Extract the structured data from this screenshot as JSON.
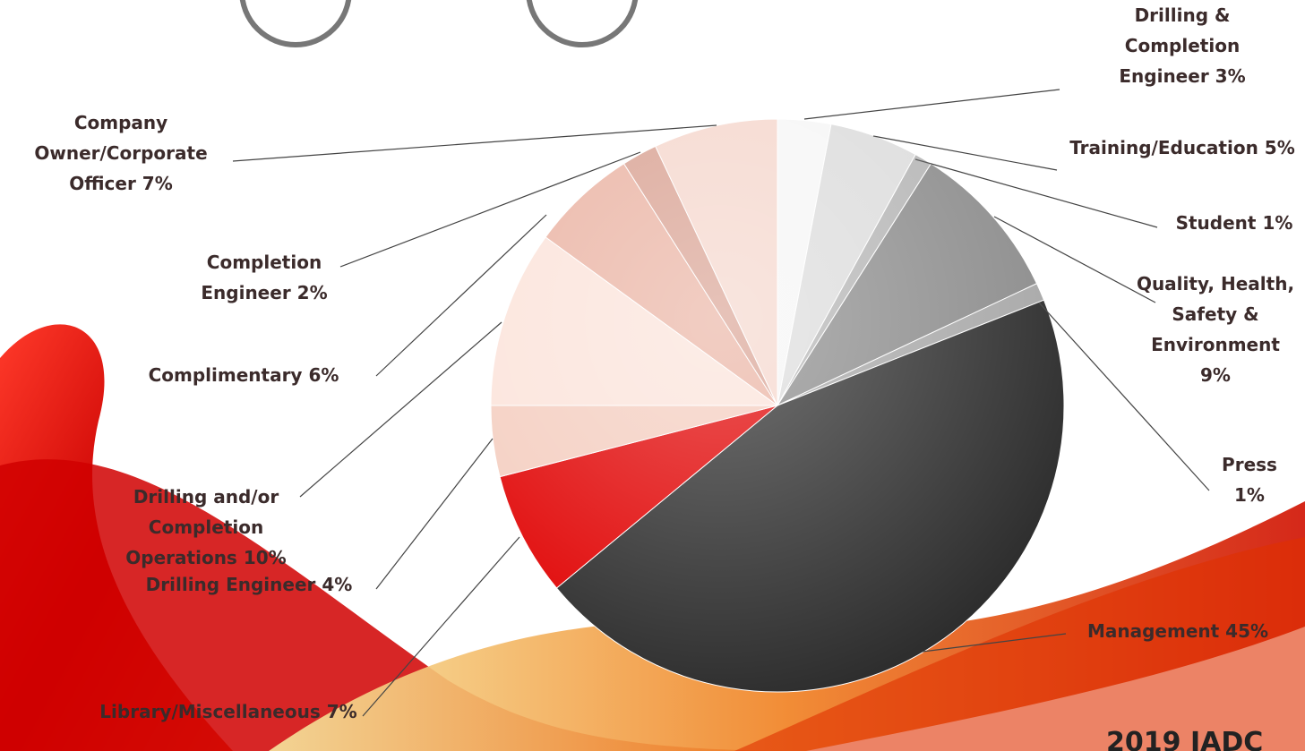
{
  "chart_data": {
    "type": "pie",
    "categories": [
      "Drilling & Completion Engineer",
      "Training/Education",
      "Student",
      "Quality, Health, Safety & Environment",
      "Press",
      "Management",
      "Library/Miscellaneous",
      "Drilling Engineer",
      "Drilling and/or Completion Operations",
      "Complimentary",
      "Completion Engineer",
      "Company Owner/Corporate Officer"
    ],
    "values": [
      3,
      5,
      1,
      9,
      1,
      45,
      7,
      4,
      10,
      6,
      2,
      7
    ],
    "value_labels": [
      "3%",
      "5%",
      "1%",
      "9%",
      "1%",
      "45%",
      "7%",
      "4%",
      "10%",
      "6%",
      "2%",
      "7%"
    ],
    "colors": [
      "#f6f6f6",
      "#dcdcdc",
      "#b4b4b4",
      "#8a8a8a",
      "#a6a6a6",
      "#2b2b2b",
      "#e00000",
      "#f4cdbf",
      "#fbe3da",
      "#eab3a3",
      "#d9a293",
      "#f5d7cd"
    ]
  },
  "footer": "2019 IADC"
}
